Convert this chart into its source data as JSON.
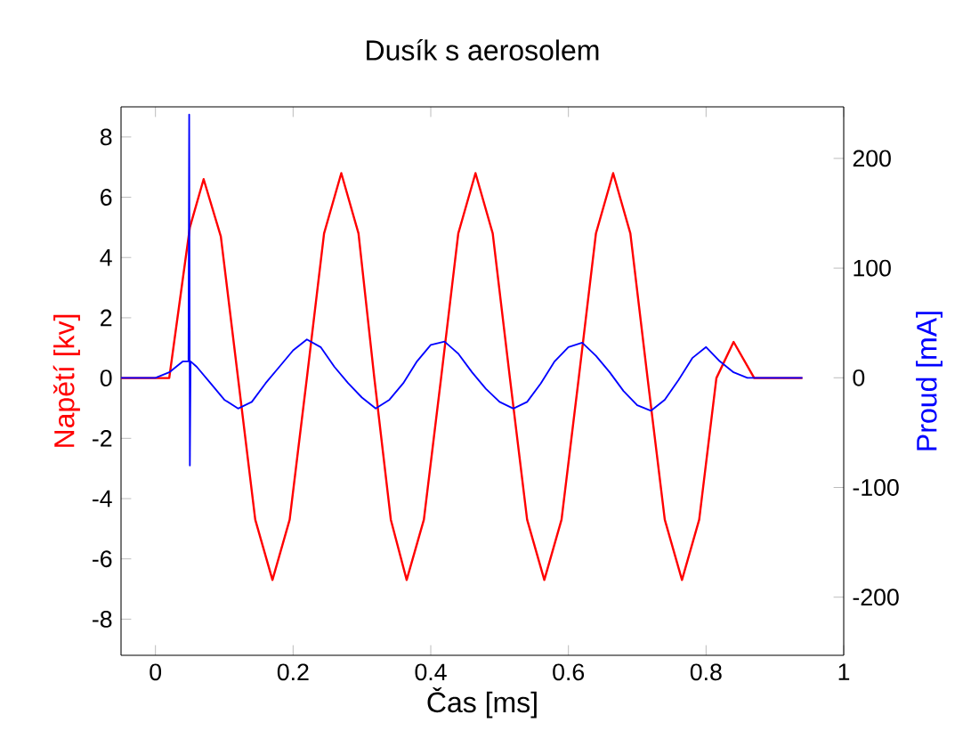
{
  "chart_data": {
    "type": "line",
    "title": "Dusík s aerosolem",
    "xlabel": "Čas [ms]",
    "ylabel": "Napětí [kv]",
    "y2label": "Proud [mA]",
    "xlim": [
      -0.05,
      1
    ],
    "xticks": [
      0,
      0.2,
      0.4,
      0.6,
      0.8,
      1
    ],
    "ylim": [
      -9.2,
      9
    ],
    "yticks": [
      -8,
      -6,
      -4,
      -2,
      0,
      2,
      4,
      6,
      8
    ],
    "y2lim": [
      -253,
      247
    ],
    "y2ticks": [
      -200,
      -100,
      0,
      100,
      200
    ],
    "grid": false,
    "series": [
      {
        "color": "#ff0000",
        "axis": "y",
        "x": [
          -0.05,
          0.02,
          0.035,
          0.05,
          0.07,
          0.095,
          0.12,
          0.145,
          0.17,
          0.195,
          0.22,
          0.245,
          0.27,
          0.295,
          0.318,
          0.342,
          0.365,
          0.39,
          0.415,
          0.44,
          0.465,
          0.49,
          0.515,
          0.54,
          0.565,
          0.59,
          0.615,
          0.64,
          0.665,
          0.69,
          0.715,
          0.74,
          0.765,
          0.79,
          0.815,
          0.84,
          0.87,
          0.94
        ],
        "values": [
          0,
          0,
          2.5,
          5.0,
          6.6,
          4.7,
          0,
          -4.7,
          -6.7,
          -4.7,
          0,
          4.8,
          6.8,
          4.8,
          0,
          -4.7,
          -6.7,
          -4.7,
          0,
          4.8,
          6.8,
          4.8,
          0,
          -4.7,
          -6.7,
          -4.7,
          0,
          4.8,
          6.8,
          4.8,
          0,
          -4.7,
          -6.7,
          -4.7,
          0,
          1.2,
          0,
          0
        ]
      },
      {
        "color": "#0000ff",
        "axis": "y2",
        "x": [
          -0.05,
          0.0,
          0.02,
          0.04,
          0.048,
          0.049,
          0.05,
          0.051,
          0.06,
          0.08,
          0.1,
          0.12,
          0.14,
          0.16,
          0.18,
          0.2,
          0.22,
          0.24,
          0.26,
          0.28,
          0.3,
          0.32,
          0.34,
          0.36,
          0.38,
          0.4,
          0.42,
          0.44,
          0.46,
          0.48,
          0.5,
          0.52,
          0.54,
          0.56,
          0.58,
          0.6,
          0.62,
          0.64,
          0.66,
          0.68,
          0.7,
          0.72,
          0.74,
          0.76,
          0.78,
          0.8,
          0.82,
          0.84,
          0.86,
          0.94
        ],
        "values": [
          0,
          0,
          5,
          15,
          15,
          240,
          -80,
          15,
          10,
          -5,
          -20,
          -28,
          -22,
          -5,
          10,
          25,
          35,
          28,
          10,
          -5,
          -18,
          -28,
          -20,
          -5,
          15,
          30,
          33,
          22,
          5,
          -10,
          -22,
          -28,
          -22,
          -5,
          15,
          28,
          32,
          20,
          5,
          -12,
          -25,
          -30,
          -20,
          -2,
          18,
          28,
          15,
          5,
          0,
          0
        ]
      }
    ]
  }
}
